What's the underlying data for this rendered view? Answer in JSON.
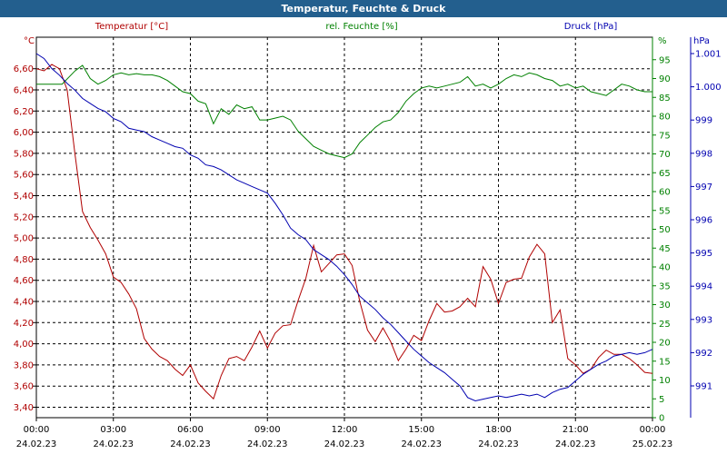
{
  "window": {
    "title": "Temperatur, Feuchte & Druck"
  },
  "colors": {
    "temperature": "#b00000",
    "humidity": "#008000",
    "pressure": "#0000b0",
    "title_bar": "#235f8e"
  },
  "chart_data": {
    "type": "line",
    "title": "Temperatur, Feuchte & Druck",
    "grid": true,
    "axes": {
      "temperature": {
        "label": "Temperatur [°C]",
        "unit": "°C",
        "side": "left",
        "min": 3.4,
        "max": 6.6,
        "ticks": [
          "3,40",
          "3,60",
          "3,80",
          "4,00",
          "4,20",
          "4,40",
          "4,60",
          "4,80",
          "5,00",
          "5,20",
          "5,40",
          "5,60",
          "5,80",
          "6,00",
          "6,20",
          "6,40",
          "6,60"
        ]
      },
      "humidity": {
        "label": "rel. Feuchte [%]",
        "unit": "%",
        "side": "right",
        "min": 0,
        "max": 95,
        "ticks": [
          "0",
          "5",
          "10",
          "15",
          "20",
          "25",
          "30",
          "35",
          "40",
          "45",
          "50",
          "55",
          "60",
          "65",
          "70",
          "75",
          "80",
          "85",
          "90",
          "95"
        ]
      },
      "pressure": {
        "label": "Druck [hPa]",
        "unit": "hPa",
        "side": "right",
        "min": 990.4,
        "max": 1001.2,
        "ticks": [
          "991",
          "992",
          "993",
          "994",
          "995",
          "996",
          "997",
          "998",
          "999",
          "1.000",
          "1.001"
        ]
      }
    },
    "x_ticks": [
      {
        "time": "00:00",
        "date": "24.02.23"
      },
      {
        "time": "03:00",
        "date": "24.02.23"
      },
      {
        "time": "06:00",
        "date": "24.02.23"
      },
      {
        "time": "09:00",
        "date": "24.02.23"
      },
      {
        "time": "12:00",
        "date": "24.02.23"
      },
      {
        "time": "15:00",
        "date": "24.02.23"
      },
      {
        "time": "18:00",
        "date": "24.02.23"
      },
      {
        "time": "21:00",
        "date": "24.02.23"
      },
      {
        "time": "00:00",
        "date": "25.02.23"
      }
    ],
    "x_hours": [
      0,
      24
    ],
    "series": [
      {
        "name": "Temperatur [°C]",
        "axis": "temperature",
        "x": [
          0,
          0.3,
          0.6,
          0.9,
          1.2,
          1.5,
          1.8,
          2.1,
          2.4,
          2.7,
          3.0,
          3.3,
          3.6,
          3.9,
          4.2,
          4.5,
          4.8,
          5.1,
          5.4,
          5.7,
          6.0,
          6.3,
          6.6,
          6.9,
          7.2,
          7.5,
          7.8,
          8.1,
          8.4,
          8.7,
          9.0,
          9.3,
          9.6,
          9.9,
          10.2,
          10.5,
          10.8,
          11.1,
          11.4,
          11.7,
          12.0,
          12.3,
          12.6,
          12.9,
          13.2,
          13.5,
          13.8,
          14.1,
          14.4,
          14.7,
          15.0,
          15.3,
          15.6,
          15.9,
          16.2,
          16.5,
          16.8,
          17.1,
          17.4,
          17.7,
          18.0,
          18.3,
          18.6,
          18.9,
          19.2,
          19.5,
          19.8,
          20.1,
          20.4,
          20.7,
          21.0,
          21.3,
          21.6,
          21.9,
          22.2,
          22.5,
          22.8,
          23.1,
          23.4,
          23.7,
          24.0
        ],
        "values": [
          6.6,
          6.58,
          6.64,
          6.6,
          6.4,
          5.8,
          5.25,
          5.1,
          4.98,
          4.85,
          4.63,
          4.58,
          4.47,
          4.33,
          4.05,
          3.95,
          3.88,
          3.84,
          3.76,
          3.7,
          3.8,
          3.63,
          3.55,
          3.48,
          3.7,
          3.86,
          3.88,
          3.84,
          3.97,
          4.12,
          3.96,
          4.1,
          4.17,
          4.18,
          4.41,
          4.62,
          4.93,
          4.68,
          4.76,
          4.84,
          4.85,
          4.74,
          4.4,
          4.13,
          4.02,
          4.15,
          4.02,
          3.84,
          3.95,
          4.08,
          4.03,
          4.22,
          4.38,
          4.3,
          4.31,
          4.35,
          4.43,
          4.35,
          4.73,
          4.61,
          4.38,
          4.58,
          4.61,
          4.62,
          4.82,
          4.94,
          4.85,
          4.2,
          4.32,
          3.86,
          3.8,
          3.72,
          3.76,
          3.87,
          3.94,
          3.9,
          3.9,
          3.86,
          3.8,
          3.73,
          3.72
        ]
      },
      {
        "name": "rel. Feuchte [%]",
        "axis": "humidity",
        "x": [
          0,
          0.5,
          1.0,
          1.5,
          1.8,
          2.1,
          2.4,
          2.7,
          3.0,
          3.3,
          3.6,
          3.9,
          4.2,
          4.5,
          4.8,
          5.1,
          5.4,
          5.7,
          6.0,
          6.3,
          6.6,
          6.9,
          7.2,
          7.5,
          7.8,
          8.1,
          8.4,
          8.7,
          9.0,
          9.3,
          9.6,
          9.9,
          10.2,
          10.5,
          10.8,
          11.1,
          11.4,
          11.7,
          12.0,
          12.3,
          12.6,
          12.9,
          13.2,
          13.5,
          13.8,
          14.1,
          14.4,
          14.7,
          15.0,
          15.3,
          15.6,
          15.9,
          16.2,
          16.5,
          16.8,
          17.1,
          17.4,
          17.7,
          18.0,
          18.3,
          18.6,
          18.9,
          19.2,
          19.5,
          19.8,
          20.1,
          20.4,
          20.7,
          21.0,
          21.3,
          21.6,
          21.9,
          22.2,
          22.5,
          22.8,
          23.1,
          23.4,
          23.7,
          24.0
        ],
        "values": [
          88.5,
          88.5,
          88.5,
          92,
          93.5,
          90,
          88.5,
          89.5,
          91,
          91.5,
          91,
          91.3,
          91,
          91,
          90.5,
          89.5,
          88,
          86.5,
          86,
          84,
          83.3,
          78,
          82,
          80.5,
          83,
          82,
          82.5,
          79,
          79,
          79.5,
          80,
          79,
          76,
          74,
          72,
          71,
          70,
          69.5,
          69,
          70,
          73,
          75,
          77,
          78.5,
          79,
          81,
          84,
          86,
          87.5,
          88,
          87.5,
          88,
          88.5,
          89,
          90.5,
          88,
          88.5,
          87.5,
          88.5,
          90,
          91,
          90.5,
          91.5,
          91,
          90,
          89.5,
          88,
          88.5,
          87.5,
          88,
          86.5,
          86,
          85.5,
          87,
          88.5,
          88,
          87,
          86.5,
          86.5
        ]
      },
      {
        "name": "Druck [hPa]",
        "axis": "pressure",
        "x": [
          0,
          0.3,
          0.6,
          0.9,
          1.2,
          1.5,
          1.8,
          2.1,
          2.4,
          2.7,
          3.0,
          3.3,
          3.6,
          3.9,
          4.2,
          4.5,
          4.8,
          5.1,
          5.4,
          5.7,
          6.0,
          6.3,
          6.6,
          6.9,
          7.2,
          7.5,
          7.8,
          8.1,
          8.4,
          8.7,
          9.0,
          9.3,
          9.6,
          9.9,
          10.2,
          10.5,
          10.8,
          11.1,
          11.4,
          11.7,
          12.0,
          12.3,
          12.6,
          12.9,
          13.2,
          13.5,
          13.8,
          14.1,
          14.4,
          14.7,
          15.0,
          15.3,
          15.6,
          15.9,
          16.2,
          16.5,
          16.8,
          17.1,
          17.4,
          17.7,
          18.0,
          18.3,
          18.6,
          18.9,
          19.2,
          19.5,
          19.8,
          20.1,
          20.4,
          20.7,
          21.0,
          21.3,
          21.6,
          21.9,
          22.2,
          22.5,
          22.8,
          23.1,
          23.4,
          23.7,
          24.0
        ],
        "values": [
          1001.0,
          1000.85,
          1000.55,
          1000.35,
          1000.1,
          999.9,
          999.65,
          999.5,
          999.35,
          999.25,
          999.05,
          998.95,
          998.75,
          998.7,
          998.65,
          998.5,
          998.4,
          998.3,
          998.2,
          998.15,
          997.95,
          997.85,
          997.65,
          997.6,
          997.5,
          997.35,
          997.2,
          997.1,
          997.0,
          996.9,
          996.8,
          996.5,
          996.15,
          995.75,
          995.55,
          995.4,
          995.1,
          994.95,
          994.8,
          994.6,
          994.35,
          994.05,
          993.7,
          993.5,
          993.3,
          993.05,
          992.85,
          992.6,
          992.35,
          992.1,
          991.9,
          991.7,
          991.55,
          991.4,
          991.2,
          991.0,
          990.65,
          990.55,
          990.6,
          990.65,
          990.7,
          990.65,
          990.7,
          990.75,
          990.7,
          990.75,
          990.65,
          990.8,
          990.9,
          990.95,
          991.15,
          991.35,
          991.5,
          991.65,
          991.75,
          991.9,
          991.95,
          992.0,
          991.95,
          992.0,
          992.1
        ]
      }
    ]
  }
}
